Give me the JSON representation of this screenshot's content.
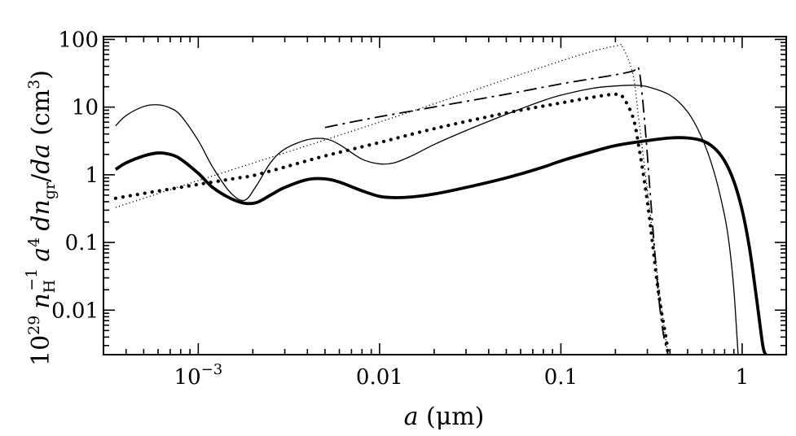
{
  "chart_data": {
    "type": "line",
    "title": "",
    "xlabel": {
      "pre": "",
      "math": "a",
      "post": " (μm)"
    },
    "ylabel": {
      "prefix": "10",
      "prefix_sup": "29",
      "n": "n",
      "n_sub": "H",
      "n_sup": "−1",
      "a": "a",
      "a_sup": "4",
      "dn": "dn",
      "dn_sub": "gr",
      "slash": "/",
      "da": "da",
      "unit": "(cm",
      "unit_sup": "3",
      "unit_close": ")"
    },
    "x_scale": "log",
    "y_scale": "log",
    "xlim": [
      0.0003,
      1.75
    ],
    "ylim": [
      0.0022,
      110
    ],
    "x_ticks": [
      {
        "value": 0.001,
        "label": "10",
        "sup": "−3"
      },
      {
        "value": 0.01,
        "label": "0.01",
        "sup": ""
      },
      {
        "value": 0.1,
        "label": "0.1",
        "sup": ""
      },
      {
        "value": 1,
        "label": "1",
        "sup": ""
      }
    ],
    "y_ticks": [
      {
        "value": 0.01,
        "label": "0.01"
      },
      {
        "value": 0.1,
        "label": "0.1"
      },
      {
        "value": 1,
        "label": "1"
      },
      {
        "value": 10,
        "label": "10"
      },
      {
        "value": 100,
        "label": "100"
      }
    ],
    "grid": false,
    "legend": "none",
    "series": [
      {
        "style": "thick-solid",
        "x": [
          0.00035,
          0.0004,
          0.0005,
          0.0006,
          0.0007,
          0.0008,
          0.001,
          0.0012,
          0.0015,
          0.0018,
          0.0021,
          0.0025,
          0.003,
          0.004,
          0.005,
          0.006,
          0.008,
          0.01,
          0.012,
          0.015,
          0.02,
          0.03,
          0.05,
          0.08,
          0.1,
          0.15,
          0.2,
          0.3,
          0.4,
          0.5,
          0.6,
          0.7,
          0.8,
          0.9,
          1.0,
          1.1,
          1.2,
          1.3,
          1.35
        ],
        "y": [
          1.2,
          1.5,
          1.9,
          2.1,
          2.0,
          1.7,
          1.05,
          0.65,
          0.45,
          0.38,
          0.39,
          0.5,
          0.65,
          0.85,
          0.87,
          0.78,
          0.58,
          0.48,
          0.46,
          0.47,
          0.52,
          0.65,
          0.9,
          1.3,
          1.6,
          2.2,
          2.7,
          3.2,
          3.5,
          3.5,
          3.2,
          2.5,
          1.6,
          0.8,
          0.3,
          0.08,
          0.015,
          0.003,
          0.0022
        ]
      },
      {
        "style": "thin-solid",
        "x": [
          0.00035,
          0.0004,
          0.0005,
          0.0006,
          0.0007,
          0.0008,
          0.001,
          0.0012,
          0.0015,
          0.0018,
          0.0021,
          0.0025,
          0.003,
          0.004,
          0.005,
          0.006,
          0.008,
          0.01,
          0.012,
          0.015,
          0.02,
          0.03,
          0.05,
          0.08,
          0.1,
          0.15,
          0.2,
          0.25,
          0.3,
          0.4,
          0.5,
          0.6,
          0.7,
          0.8,
          0.85,
          0.9,
          0.95
        ],
        "y": [
          5.3,
          7.5,
          10.2,
          10.8,
          9.7,
          7.5,
          3.2,
          1.3,
          0.55,
          0.42,
          0.7,
          1.5,
          2.4,
          3.3,
          3.4,
          2.8,
          1.7,
          1.45,
          1.5,
          1.9,
          2.8,
          4.5,
          7.8,
          12.5,
          15,
          19,
          20.5,
          21,
          20,
          15,
          8.5,
          3.5,
          1.1,
          0.25,
          0.09,
          0.02,
          0.0022
        ]
      },
      {
        "style": "thick-dotted",
        "x": [
          0.00035,
          0.0005,
          0.001,
          0.0015,
          0.0018,
          0.002,
          0.003,
          0.005,
          0.01,
          0.02,
          0.05,
          0.1,
          0.15,
          0.2,
          0.22,
          0.25,
          0.27,
          0.3,
          0.32,
          0.34,
          0.36,
          0.38,
          0.39
        ],
        "y": [
          0.45,
          0.53,
          0.72,
          0.86,
          0.93,
          0.97,
          1.3,
          1.9,
          3.0,
          4.8,
          8.2,
          11.5,
          14,
          15.5,
          14,
          7,
          2.5,
          0.4,
          0.1,
          0.025,
          0.009,
          0.004,
          0.0022
        ]
      },
      {
        "style": "thin-dotted",
        "x": [
          0.00035,
          0.001,
          0.01,
          0.1,
          0.2,
          0.22,
          0.25,
          0.27,
          0.3,
          0.33,
          0.36,
          0.39
        ],
        "y": [
          0.33,
          0.82,
          6.0,
          48,
          80,
          75,
          30,
          6,
          0.6,
          0.07,
          0.01,
          0.0022
        ]
      },
      {
        "style": "dash-dot",
        "x": [
          0.005,
          0.01,
          0.05,
          0.1,
          0.2,
          0.25,
          0.27,
          0.29,
          0.31,
          0.33,
          0.35,
          0.37,
          0.39
        ],
        "y": [
          5.0,
          7.2,
          15.5,
          22,
          30,
          34,
          35,
          6,
          0.6,
          0.07,
          0.012,
          0.004,
          0.0022
        ]
      }
    ]
  }
}
